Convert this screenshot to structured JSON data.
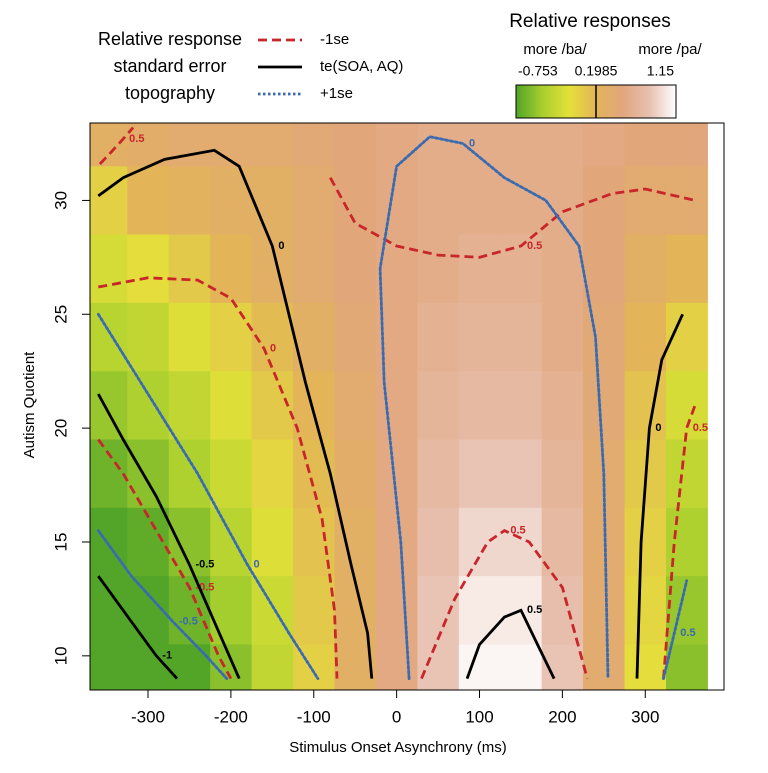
{
  "chart_data": {
    "type": "contour",
    "xlabel": "Stimulus Onset Asynchrony (ms)",
    "ylabel": "Autism Quotient",
    "xlim": [
      -370,
      395
    ],
    "ylim": [
      8.5,
      33.4
    ],
    "xticks": [
      -300,
      -200,
      -100,
      0,
      100,
      200,
      300
    ],
    "yticks": [
      10,
      15,
      20,
      25,
      30
    ],
    "legend_title": [
      "Relative response",
      "standard error",
      "topography"
    ],
    "colorbar": {
      "title": "Relative responses",
      "low_label": "more /ba/",
      "high_label": "more /pa/",
      "lim": [
        -0.753,
        1.15
      ],
      "ticks": [
        -0.753,
        0.1985,
        1.15
      ],
      "colors": [
        "#52a528",
        "#a8cf2e",
        "#e4e03a",
        "#e3b458",
        "#e1a67c",
        "#e8c0b0",
        "#ffffff"
      ]
    },
    "zx": [
      -350,
      -300,
      -250,
      -200,
      -150,
      -100,
      -50,
      0,
      50,
      100,
      150,
      200,
      250,
      300,
      350
    ],
    "zy": [
      33,
      30,
      27,
      24,
      21,
      18,
      15,
      12,
      9
    ],
    "z": [
      [
        0.3,
        0.35,
        0.4,
        0.4,
        0.4,
        0.45,
        0.5,
        0.55,
        0.6,
        0.6,
        0.6,
        0.6,
        0.55,
        0.5,
        0.5
      ],
      [
        0.0,
        0.2,
        0.25,
        0.3,
        0.3,
        0.4,
        0.5,
        0.55,
        0.6,
        0.6,
        0.6,
        0.6,
        0.5,
        0.4,
        0.4
      ],
      [
        -0.2,
        -0.1,
        0.05,
        0.2,
        0.3,
        0.4,
        0.5,
        0.55,
        0.6,
        0.65,
        0.65,
        0.6,
        0.5,
        0.3,
        0.2
      ],
      [
        -0.35,
        -0.3,
        -0.15,
        0.0,
        0.15,
        0.3,
        0.45,
        0.55,
        0.65,
        0.7,
        0.7,
        0.6,
        0.45,
        0.2,
        0.0
      ],
      [
        -0.5,
        -0.4,
        -0.3,
        -0.15,
        0.05,
        0.2,
        0.4,
        0.55,
        0.7,
        0.75,
        0.75,
        0.65,
        0.45,
        0.1,
        -0.2
      ],
      [
        -0.65,
        -0.55,
        -0.4,
        -0.25,
        -0.05,
        0.15,
        0.35,
        0.55,
        0.75,
        0.85,
        0.85,
        0.7,
        0.4,
        0.05,
        -0.3
      ],
      [
        -0.8,
        -0.7,
        -0.55,
        -0.35,
        -0.15,
        0.1,
        0.3,
        0.55,
        0.8,
        0.95,
        0.95,
        0.75,
        0.4,
        0.0,
        -0.4
      ],
      [
        -1.0,
        -0.85,
        -0.65,
        -0.45,
        -0.25,
        0.05,
        0.3,
        0.55,
        0.85,
        1.05,
        1.05,
        0.8,
        0.4,
        -0.05,
        -0.5
      ],
      [
        -1.1,
        -0.95,
        -0.75,
        -0.55,
        -0.3,
        0.0,
        0.3,
        0.55,
        0.85,
        1.1,
        1.1,
        0.85,
        0.4,
        -0.1,
        -0.55
      ]
    ],
    "series": [
      {
        "name": "-1se",
        "color": "#c8262a",
        "style": "dashed",
        "contours": [
          {
            "level": 0.5,
            "x": [
              -358,
              -345,
              -330,
              -318
            ],
            "y": [
              31.6,
              32.1,
              32.7,
              33.2
            ]
          },
          {
            "level": 0,
            "x": [
              -360,
              -300,
              -240,
              -200,
              -160,
              -120,
              -90,
              -75,
              -72
            ],
            "y": [
              26.2,
              26.6,
              26.5,
              25.7,
              23.5,
              20,
              16,
              12,
              9
            ]
          },
          {
            "level": -0.5,
            "x": [
              -360,
              -330,
              -290,
              -250,
              -215,
              -200
            ],
            "y": [
              19.5,
              18,
              15.5,
              13,
              10,
              9
            ]
          },
          {
            "level": 0.5,
            "x": [
              -80,
              -50,
              0,
              50,
              100,
              150,
              200,
              260,
              300,
              360
            ],
            "y": [
              31,
              29,
              28,
              27.6,
              27.5,
              28,
              29.5,
              30.3,
              30.5,
              30
            ]
          },
          {
            "level": 0.5,
            "x": [
              30,
              70,
              110,
              130,
              160,
              200,
              230
            ],
            "y": [
              9,
              12.5,
              15,
              15.5,
              15,
              13,
              9
            ]
          },
          {
            "level": 0.5,
            "x": [
              322,
              335,
              350,
              360
            ],
            "y": [
              9,
              15,
              20,
              21
            ]
          }
        ]
      },
      {
        "name": "te(SOA, AQ)",
        "color": "#000000",
        "style": "solid",
        "contours": [
          {
            "level": 0,
            "x": [
              -360,
              -330,
              -280,
              -220,
              -190,
              -150,
              -110,
              -80,
              -55,
              -35,
              -30
            ],
            "y": [
              30.2,
              31,
              31.8,
              32.2,
              31.5,
              28,
              22,
              18,
              14,
              11,
              9
            ]
          },
          {
            "level": -0.5,
            "x": [
              -360,
              -330,
              -290,
              -250,
              -220,
              -190
            ],
            "y": [
              21.5,
              19.5,
              17,
              14,
              11.5,
              9
            ]
          },
          {
            "level": -1,
            "x": [
              -360,
              -320,
              -290,
              -265
            ],
            "y": [
              13.5,
              11.5,
              10,
              9
            ]
          },
          {
            "level": 0.5,
            "x": [
              85,
              100,
              130,
              150,
              170,
              190
            ],
            "y": [
              9,
              10.5,
              11.7,
              12,
              10.5,
              9
            ]
          },
          {
            "level": 0,
            "x": [
              290,
              295,
              305,
              320,
              345
            ],
            "y": [
              9,
              15,
              20,
              23,
              25
            ]
          }
        ]
      },
      {
        "name": "+1se",
        "color": "#3a6ab0",
        "style": "dotted",
        "contours": [
          {
            "level": 0,
            "x": [
              -360,
              -300,
              -240,
              -180,
              -130,
              -95
            ],
            "y": [
              25,
              21.5,
              18,
              14,
              11,
              9
            ]
          },
          {
            "level": -0.5,
            "x": [
              -360,
              -320,
              -270,
              -230,
              -205
            ],
            "y": [
              15.5,
              13.5,
              11.5,
              10,
              9
            ]
          },
          {
            "level": 0,
            "x": [
              15,
              5,
              -15,
              -20,
              0,
              40,
              80,
              130,
              180,
              220,
              240,
              250,
              255
            ],
            "y": [
              9,
              15,
              22,
              27,
              31.5,
              32.8,
              32.5,
              31,
              30,
              28,
              24,
              18,
              9
            ]
          },
          {
            "level": 0.5,
            "x": [
              322,
              335,
              350
            ],
            "y": [
              9,
              11,
              13.3
            ]
          }
        ]
      }
    ]
  }
}
